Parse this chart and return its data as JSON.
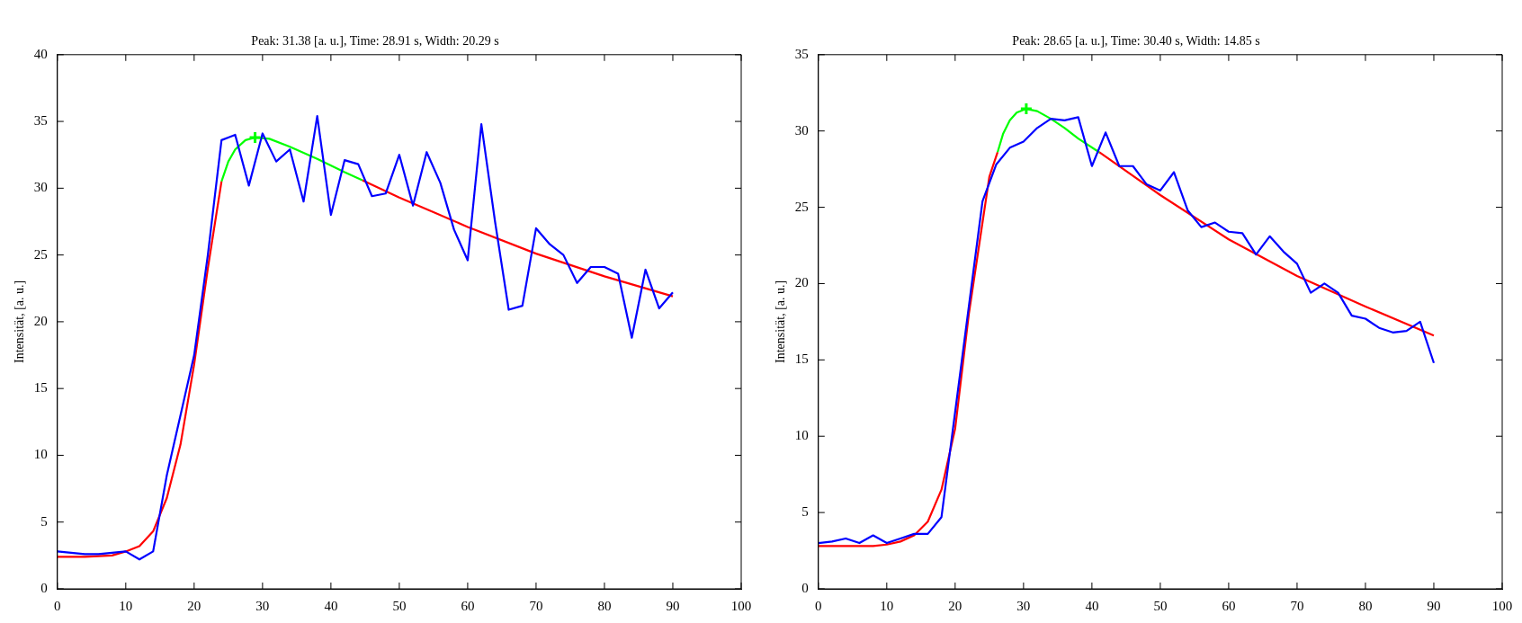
{
  "chart_data": [
    {
      "type": "line",
      "title": "Peak: 31.38 [a. u.], Time: 28.91 s, Width: 20.29 s",
      "ylabel": "Intensität, [a. u.]",
      "xlim": [
        0,
        100
      ],
      "xticks": [
        0,
        10,
        20,
        30,
        40,
        50,
        60,
        70,
        80,
        90,
        100
      ],
      "ylim": [
        0,
        40
      ],
      "yticks": [
        0,
        5,
        10,
        15,
        20,
        25,
        30,
        35,
        40
      ],
      "marker": "none",
      "line_style": "solid",
      "series": [
        {
          "color": "#0000ff",
          "x": [
            0,
            2,
            4,
            6,
            8,
            10,
            12,
            14,
            16,
            18,
            20,
            22,
            24,
            26,
            28,
            30,
            32,
            34,
            36,
            38,
            40,
            42,
            44,
            46,
            48,
            50,
            52,
            54,
            56,
            58,
            60,
            62,
            64,
            66,
            68,
            70,
            72,
            74,
            76,
            78,
            80,
            82,
            84,
            86,
            88,
            90
          ],
          "values": [
            2.8,
            2.7,
            2.6,
            2.6,
            2.7,
            2.8,
            2.2,
            2.8,
            8.5,
            13,
            17.5,
            25,
            33.6,
            34.0,
            30.2,
            34.1,
            32.0,
            32.9,
            29.0,
            35.4,
            28.0,
            32.1,
            31.8,
            29.4,
            29.6,
            32.5,
            28.7,
            32.7,
            30.4,
            26.9,
            24.6,
            34.8,
            27.5,
            20.9,
            21.2,
            27.0,
            25.8,
            25.0,
            22.9,
            24.1,
            24.1,
            23.6,
            18.8,
            23.9,
            21.0,
            22.2
          ]
        },
        {
          "color": "#ff0000",
          "x": [
            0,
            4,
            8,
            10,
            12,
            14,
            16,
            18,
            20,
            22,
            24
          ],
          "values": [
            2.4,
            2.4,
            2.5,
            2.8,
            3.2,
            4.3,
            6.8,
            10.8,
            16.8,
            24.0,
            30.5
          ]
        },
        {
          "color": "#ff0000",
          "x": [
            44.6,
            50,
            55,
            60,
            70,
            80,
            90
          ],
          "values": [
            30.6,
            29.3,
            28.2,
            27.1,
            25.1,
            23.4,
            21.9
          ]
        },
        {
          "color": "#00ff00",
          "x": [
            24,
            25,
            26,
            27.5,
            28.91,
            31,
            34,
            38,
            42,
            44.6
          ],
          "values": [
            30.5,
            32.0,
            32.9,
            33.6,
            33.8,
            33.7,
            33.1,
            32.2,
            31.2,
            30.6
          ]
        },
        {
          "type": "scatter",
          "color": "#00ff00",
          "marker": "cross",
          "x": [
            28.91
          ],
          "values": [
            33.8
          ]
        }
      ]
    },
    {
      "type": "line",
      "title": "Peak: 28.65 [a. u.], Time: 30.40 s, Width: 14.85 s",
      "ylabel": "Intensität, [a. u.]",
      "xlim": [
        0,
        100
      ],
      "xticks": [
        0,
        10,
        20,
        30,
        40,
        50,
        60,
        70,
        80,
        90,
        100
      ],
      "ylim": [
        0,
        35
      ],
      "yticks": [
        0,
        5,
        10,
        15,
        20,
        25,
        30,
        35
      ],
      "marker": "none",
      "line_style": "solid",
      "series": [
        {
          "color": "#0000ff",
          "x": [
            0,
            2,
            4,
            6,
            8,
            10,
            12,
            14,
            16,
            18,
            20,
            22,
            24,
            26,
            28,
            30,
            32,
            34,
            36,
            38,
            40,
            42,
            44,
            46,
            48,
            50,
            52,
            54,
            56,
            58,
            60,
            62,
            64,
            66,
            68,
            70,
            72,
            74,
            76,
            78,
            80,
            82,
            84,
            86,
            88,
            90
          ],
          "values": [
            3.0,
            3.1,
            3.3,
            3.0,
            3.5,
            3.0,
            3.3,
            3.6,
            3.6,
            4.7,
            11.6,
            18.5,
            25.4,
            27.8,
            28.9,
            29.3,
            30.2,
            30.8,
            30.7,
            30.9,
            27.7,
            29.9,
            27.7,
            27.7,
            26.5,
            26.1,
            27.3,
            24.8,
            23.7,
            24.0,
            23.4,
            23.3,
            21.9,
            23.1,
            22.1,
            21.3,
            19.4,
            20.0,
            19.4,
            17.9,
            17.7,
            17.1,
            16.8,
            16.9,
            17.5,
            14.8
          ]
        },
        {
          "color": "#ff0000",
          "x": [
            0,
            4,
            8,
            10,
            12,
            14,
            16,
            18,
            20,
            22,
            24,
            25,
            26.2
          ],
          "values": [
            2.8,
            2.8,
            2.8,
            2.9,
            3.1,
            3.5,
            4.4,
            6.5,
            10.5,
            18.0,
            24.0,
            27.0,
            28.6
          ]
        },
        {
          "color": "#ff0000",
          "x": [
            41.1,
            50,
            60,
            70,
            80,
            90
          ],
          "values": [
            28.6,
            25.8,
            22.9,
            20.5,
            18.5,
            16.6
          ]
        },
        {
          "color": "#00ff00",
          "x": [
            26.2,
            27,
            28,
            29,
            30.4,
            32,
            34,
            36,
            38,
            41.1
          ],
          "values": [
            28.6,
            29.8,
            30.7,
            31.2,
            31.45,
            31.3,
            30.8,
            30.2,
            29.5,
            28.6
          ]
        },
        {
          "type": "scatter",
          "color": "#00ff00",
          "marker": "cross",
          "x": [
            30.4
          ],
          "values": [
            31.45
          ]
        }
      ]
    }
  ]
}
